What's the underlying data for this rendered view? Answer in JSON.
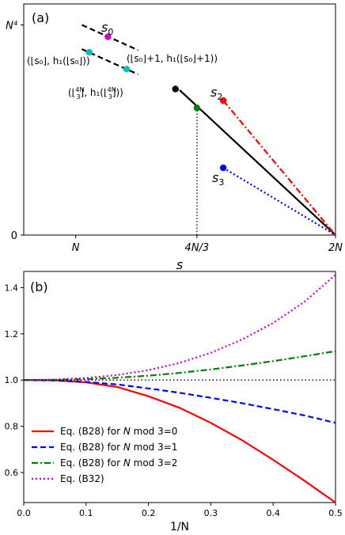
{
  "chart_data": [
    {
      "panel": "a",
      "type": "line",
      "panel_label": "(a)",
      "xlabel": "s",
      "xlim": [
        0.5,
        2.0
      ],
      "ylim": [
        0.0,
        1.1
      ],
      "x_ticks": [
        {
          "value": 0.75,
          "label": "N"
        },
        {
          "value": 1.3333,
          "label": "4N/3"
        },
        {
          "value": 2.0,
          "label": "2N"
        }
      ],
      "y_ticks": [
        {
          "value": 0.0,
          "label": "0"
        },
        {
          "value": 1.0,
          "label": "N⁴"
        }
      ],
      "series": [
        {
          "name": "main-line",
          "color": "#000000",
          "style": "solid",
          "points": [
            [
              1.25,
              0.69
            ],
            [
              2.0,
              0.0
            ]
          ]
        },
        {
          "name": "s2-line",
          "color": "#ff0000",
          "style": "dashdot",
          "points": [
            [
              1.46,
              0.64
            ],
            [
              2.0,
              0.0
            ]
          ]
        },
        {
          "name": "s3-line",
          "color": "#0000ff",
          "style": "dotted",
          "points": [
            [
              1.46,
              0.32
            ],
            [
              2.0,
              0.0
            ]
          ]
        },
        {
          "name": "dashed-upper",
          "color": "#000000",
          "style": "dashed",
          "points": [
            [
              0.78,
              1.0
            ],
            [
              1.05,
              0.88
            ]
          ]
        },
        {
          "name": "dashed-lower",
          "color": "#000000",
          "style": "dashed",
          "points": [
            [
              0.78,
              0.885
            ],
            [
              1.05,
              0.765
            ]
          ]
        },
        {
          "name": "vertical-guide",
          "color": "#000000",
          "style": "dotted",
          "points": [
            [
              1.3333,
              0.0
            ],
            [
              1.3333,
              0.605
            ]
          ]
        }
      ],
      "points": [
        {
          "name": "s0-point",
          "x": 0.905,
          "y": 0.944,
          "color": "#cc00cc"
        },
        {
          "name": "cyan-left-point",
          "x": 0.815,
          "y": 0.87,
          "color": "#00bfbf"
        },
        {
          "name": "cyan-right-point",
          "x": 0.995,
          "y": 0.79,
          "color": "#00bfbf"
        },
        {
          "name": "black-point",
          "x": 1.23,
          "y": 0.695,
          "color": "#000000"
        },
        {
          "name": "green-point",
          "x": 1.3333,
          "y": 0.605,
          "color": "#008000"
        },
        {
          "name": "s2-point",
          "x": 1.46,
          "y": 0.64,
          "color": "#ff0000"
        },
        {
          "name": "s3-point",
          "x": 1.46,
          "y": 0.32,
          "color": "#0000ff"
        }
      ],
      "annotations": {
        "s0": "s",
        "s0_sub": "0",
        "s2": "s",
        "s2_sub": "2",
        "s3": "s",
        "s3_sub": "3",
        "left_pair": "(⌊s₀⌋, h₁(⌊s₀⌋))",
        "right_pair": "(⌊s₀⌋+1, h₁(⌊s₀⌋+1))",
        "floor_pair_open": "(⌊",
        "floor_pair_frac_num": "4N",
        "floor_pair_frac_den": "3",
        "floor_pair_mid": "⌋, h₁(⌊",
        "floor_pair_close": "⌋))"
      }
    },
    {
      "panel": "b",
      "type": "line",
      "panel_label": "(b)",
      "xlabel": "1/N",
      "xlim": [
        0.0,
        0.5
      ],
      "ylim": [
        0.47,
        1.47
      ],
      "x_ticks": [
        "0.0",
        "0.1",
        "0.2",
        "0.3",
        "0.4",
        "0.5"
      ],
      "y_ticks": [
        "0.6",
        "0.8",
        "1.0",
        "1.2",
        "1.4"
      ],
      "x": [
        0.0,
        0.05,
        0.1,
        0.15,
        0.2,
        0.25,
        0.3,
        0.35,
        0.4,
        0.45,
        0.5
      ],
      "series": [
        {
          "name": "Eq. (B28) for N mod 3=0",
          "color": "#ff0000",
          "style": "solid",
          "values": [
            1.0,
            0.999,
            0.99,
            0.97,
            0.93,
            0.88,
            0.815,
            0.74,
            0.655,
            0.565,
            0.47
          ]
        },
        {
          "name": "Eq. (B28) for N mod 3=1",
          "color": "#0000ff",
          "style": "dashed",
          "values": [
            1.0,
            0.998,
            0.992,
            0.981,
            0.964,
            0.945,
            0.923,
            0.9,
            0.874,
            0.847,
            0.815
          ]
        },
        {
          "name": "Eq. (B28) for N mod 3=2",
          "color": "#008000",
          "style": "dashdot",
          "values": [
            1.0,
            1.001,
            1.004,
            1.01,
            1.019,
            1.031,
            1.046,
            1.063,
            1.082,
            1.103,
            1.125
          ]
        },
        {
          "name": "Eq. (B32)",
          "color": "#cc00cc",
          "style": "dotted",
          "values": [
            1.0,
            1.002,
            1.009,
            1.022,
            1.043,
            1.074,
            1.118,
            1.175,
            1.247,
            1.338,
            1.455
          ]
        },
        {
          "name": "reference",
          "color": "#000000",
          "style": "dotted",
          "values": [
            1.0,
            1.0,
            1.0,
            1.0,
            1.0,
            1.0,
            1.0,
            1.0,
            1.0,
            1.0,
            1.0
          ]
        }
      ],
      "legend": {
        "placement": "lower-left",
        "entries": [
          {
            "prefix": "Eq. (B28) for ",
            "var": "N",
            "suffix": " mod 3=0",
            "color": "#ff0000",
            "style": "solid"
          },
          {
            "prefix": "Eq. (B28) for ",
            "var": "N",
            "suffix": " mod 3=1",
            "color": "#0000ff",
            "style": "dashed"
          },
          {
            "prefix": "Eq. (B28) for ",
            "var": "N",
            "suffix": " mod 3=2",
            "color": "#008000",
            "style": "dashdot"
          },
          {
            "prefix": "Eq. (B32)",
            "var": "",
            "suffix": "",
            "color": "#cc00cc",
            "style": "dotted"
          }
        ]
      }
    }
  ]
}
